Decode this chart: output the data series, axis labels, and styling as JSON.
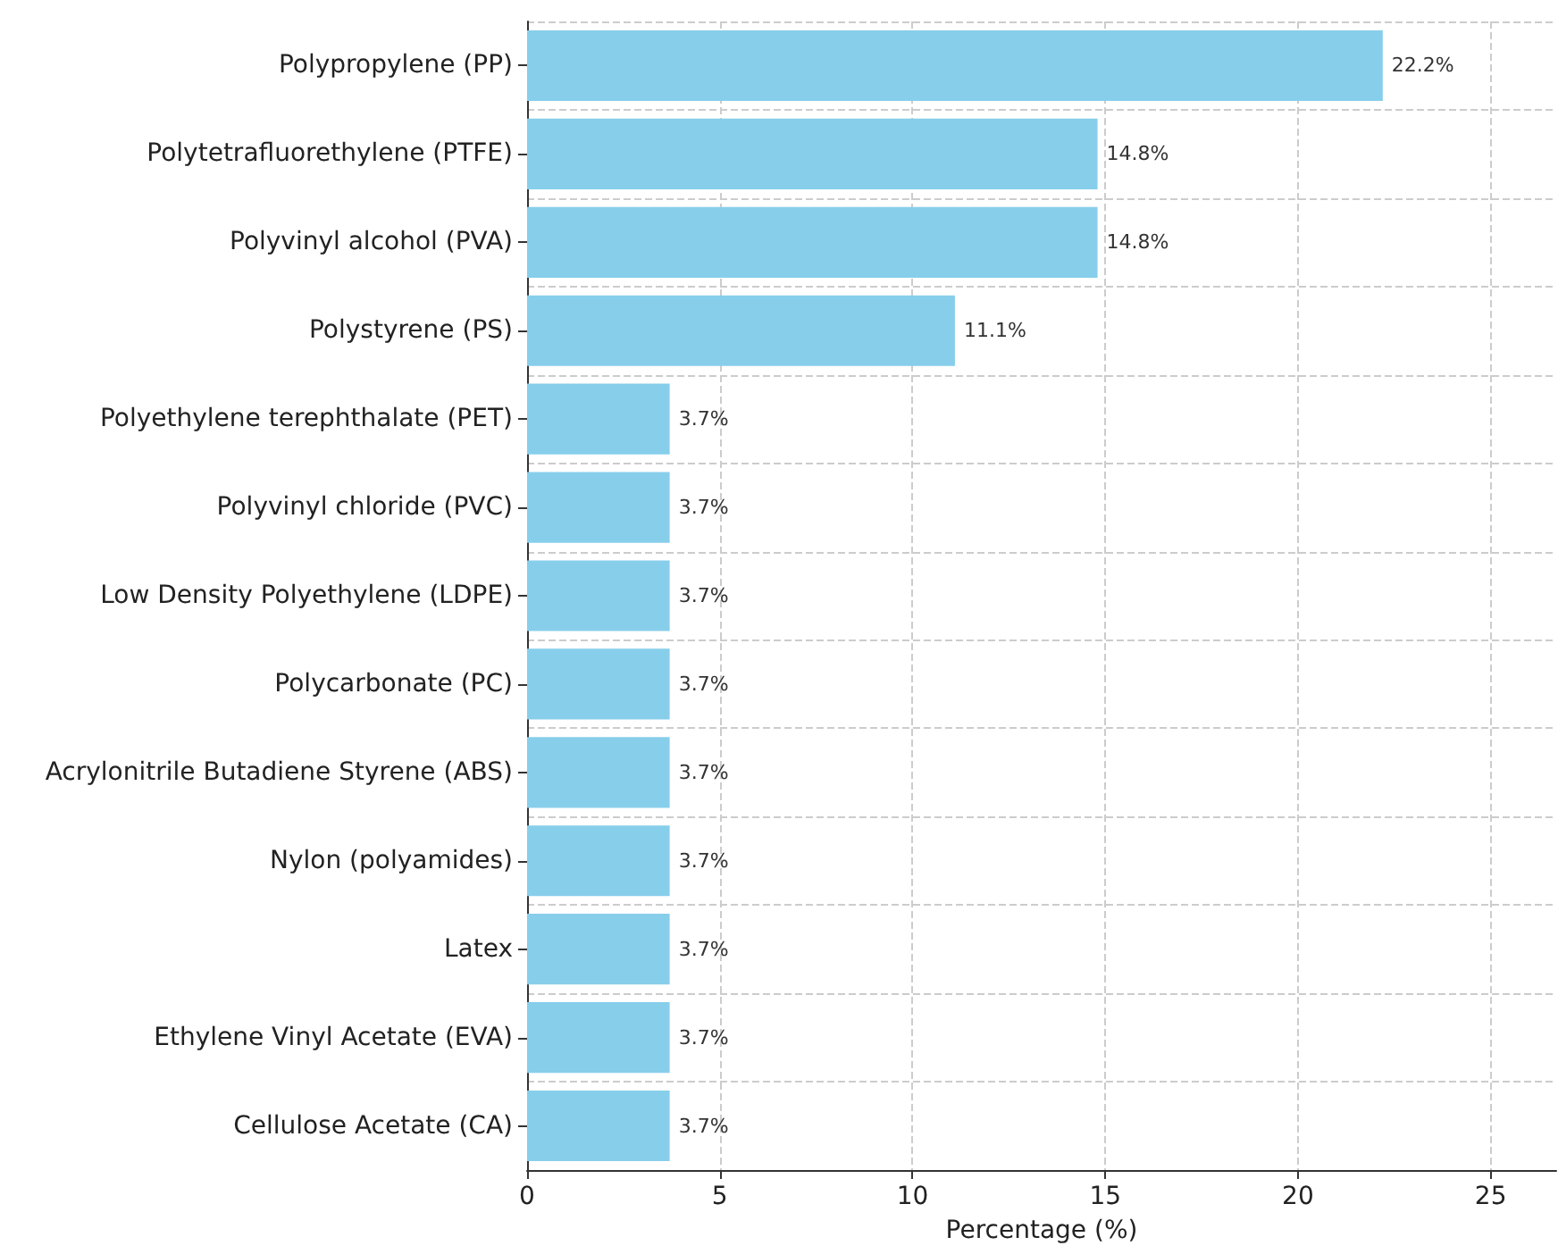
{
  "chart_data": {
    "type": "bar",
    "orientation": "horizontal",
    "xlabel": "Percentage (%)",
    "categories": [
      "Polypropylene (PP)",
      "Polytetrafluorethylene (PTFE)",
      "Polyvinyl alcohol (PVA)",
      "Polystyrene (PS)",
      "Polyethylene terephthalate (PET)",
      "Polyvinyl chloride (PVC)",
      "Low Density Polyethylene (LDPE)",
      "Polycarbonate (PC)",
      "Acrylonitrile Butadiene Styrene (ABS)",
      "Nylon (polyamides)",
      "Latex",
      "Ethylene Vinyl Acetate (EVA)",
      "Cellulose Acetate (CA)"
    ],
    "values": [
      22.2,
      14.8,
      14.8,
      11.1,
      3.7,
      3.7,
      3.7,
      3.7,
      3.7,
      3.7,
      3.7,
      3.7,
      3.7
    ],
    "value_labels": [
      "22.2%",
      "14.8%",
      "14.8%",
      "11.1%",
      "3.7%",
      "3.7%",
      "3.7%",
      "3.7%",
      "3.7%",
      "3.7%",
      "3.7%",
      "3.7%",
      "3.7%"
    ],
    "color": "#87ceeb",
    "xlim": [
      0,
      26.7
    ],
    "xticks": [
      0,
      5,
      10,
      15,
      20,
      25
    ],
    "grid": true
  }
}
